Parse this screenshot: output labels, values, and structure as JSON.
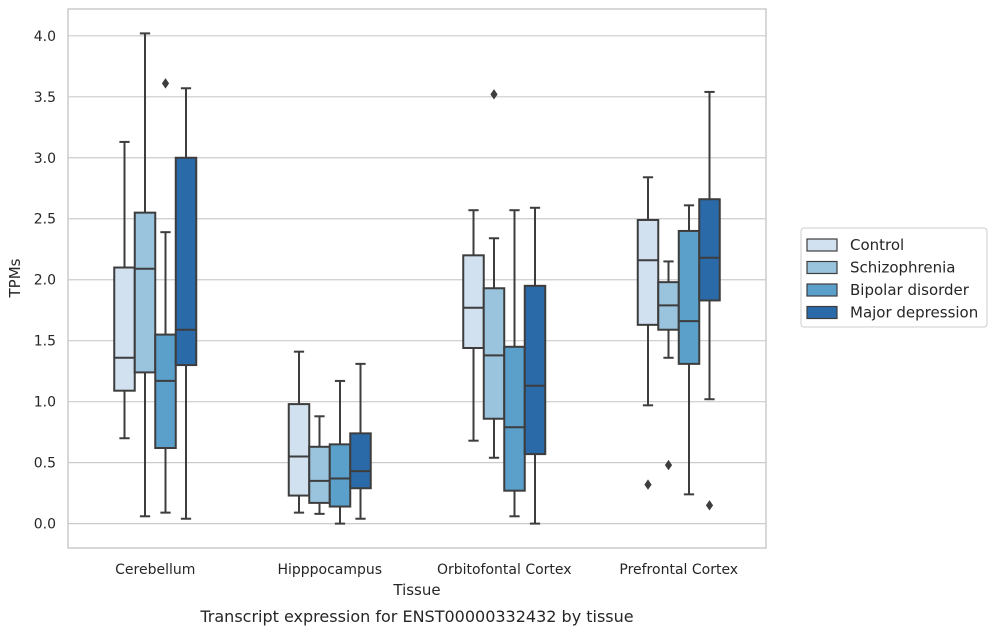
{
  "caption": "Transcript expression for ENST00000332432 by tissue",
  "chart_data": {
    "type": "box",
    "xlabel": "Tissue",
    "ylabel": "TPMs",
    "ylim": [
      -0.2,
      4.22
    ],
    "yticks": [
      "0.0",
      "0.5",
      "1.0",
      "1.5",
      "2.0",
      "2.5",
      "3.0",
      "3.5",
      "4.0"
    ],
    "grid": "horizontal",
    "legend_position": "right",
    "categories": [
      "Cerebellum",
      "Hipppocampus",
      "Orbitofontal Cortex",
      "Prefrontal Cortex"
    ],
    "series": [
      {
        "name": "Control",
        "color": "#d1e1f0",
        "boxes": [
          {
            "whisker_low": 0.7,
            "q1": 1.09,
            "median": 1.36,
            "q3": 2.1,
            "whisker_high": 3.13,
            "outliers": []
          },
          {
            "whisker_low": 0.09,
            "q1": 0.23,
            "median": 0.55,
            "q3": 0.98,
            "whisker_high": 1.41,
            "outliers": []
          },
          {
            "whisker_low": 0.68,
            "q1": 1.44,
            "median": 1.77,
            "q3": 2.2,
            "whisker_high": 2.57,
            "outliers": []
          },
          {
            "whisker_low": 0.97,
            "q1": 1.63,
            "median": 2.16,
            "q3": 2.49,
            "whisker_high": 2.84,
            "outliers": [
              0.32
            ]
          }
        ]
      },
      {
        "name": "Schizophrenia",
        "color": "#9ac3dd",
        "boxes": [
          {
            "whisker_low": 0.06,
            "q1": 1.24,
            "median": 2.09,
            "q3": 2.55,
            "whisker_high": 4.02,
            "outliers": []
          },
          {
            "whisker_low": 0.08,
            "q1": 0.17,
            "median": 0.35,
            "q3": 0.63,
            "whisker_high": 0.88,
            "outliers": []
          },
          {
            "whisker_low": 0.54,
            "q1": 0.86,
            "median": 1.38,
            "q3": 1.93,
            "whisker_high": 2.34,
            "outliers": [
              3.52
            ]
          },
          {
            "whisker_low": 1.36,
            "q1": 1.59,
            "median": 1.79,
            "q3": 1.98,
            "whisker_high": 2.15,
            "outliers": [
              0.48
            ]
          }
        ]
      },
      {
        "name": "Bipolar disorder",
        "color": "#5b9fcb",
        "boxes": [
          {
            "whisker_low": 0.09,
            "q1": 0.62,
            "median": 1.17,
            "q3": 1.55,
            "whisker_high": 2.39,
            "outliers": [
              3.61
            ]
          },
          {
            "whisker_low": 0.0,
            "q1": 0.14,
            "median": 0.37,
            "q3": 0.65,
            "whisker_high": 1.17,
            "outliers": []
          },
          {
            "whisker_low": 0.06,
            "q1": 0.27,
            "median": 0.79,
            "q3": 1.45,
            "whisker_high": 2.57,
            "outliers": []
          },
          {
            "whisker_low": 0.24,
            "q1": 1.31,
            "median": 1.66,
            "q3": 2.4,
            "whisker_high": 2.61,
            "outliers": []
          }
        ]
      },
      {
        "name": "Major depression",
        "color": "#2b6aa8",
        "boxes": [
          {
            "whisker_low": 0.04,
            "q1": 1.3,
            "median": 1.59,
            "q3": 3.0,
            "whisker_high": 3.57,
            "outliers": []
          },
          {
            "whisker_low": 0.04,
            "q1": 0.29,
            "median": 0.43,
            "q3": 0.74,
            "whisker_high": 1.31,
            "outliers": []
          },
          {
            "whisker_low": 0.0,
            "q1": 0.57,
            "median": 1.13,
            "q3": 1.95,
            "whisker_high": 2.59,
            "outliers": []
          },
          {
            "whisker_low": 1.02,
            "q1": 1.83,
            "median": 2.18,
            "q3": 2.66,
            "whisker_high": 3.54,
            "outliers": [
              0.15
            ]
          }
        ]
      }
    ]
  }
}
